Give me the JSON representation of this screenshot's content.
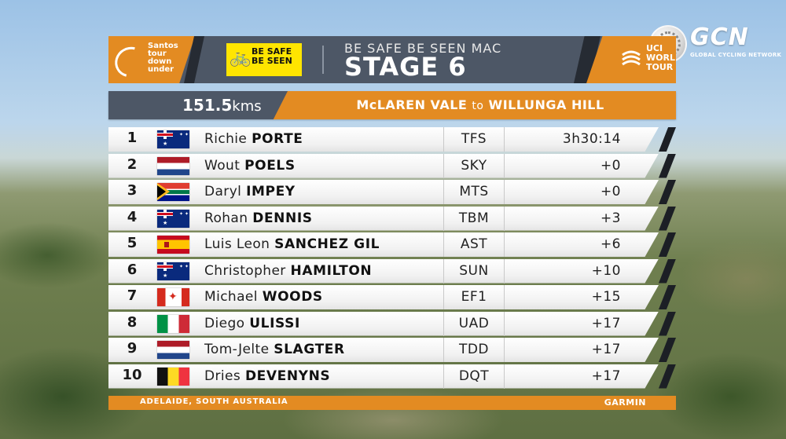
{
  "broadcaster": {
    "logo_text": "GCN",
    "logo_sub": "GLOBAL CYCLING NETWORK"
  },
  "header": {
    "event_logo_text": "Santos tour down under",
    "sponsor_logo_text": "BE SAFE BE SEEN",
    "subtitle": "BE SAFE BE SEEN MAC",
    "title": "STAGE 6",
    "uci_text": "UCI WORLD TOUR"
  },
  "route": {
    "distance_value": "151.5",
    "distance_unit": "kms",
    "start": "McLAREN VALE",
    "connector": "to",
    "finish": "WILLUNGA HILL"
  },
  "results": [
    {
      "pos": "1",
      "flag": "australia-flag",
      "first": "Richie",
      "last": "PORTE",
      "team": "TFS",
      "time": "3h30:14"
    },
    {
      "pos": "2",
      "flag": "netherlands-flag",
      "first": "Wout",
      "last": "POELS",
      "team": "SKY",
      "time": "+0"
    },
    {
      "pos": "3",
      "flag": "south-africa-flag",
      "first": "Daryl",
      "last": "IMPEY",
      "team": "MTS",
      "time": "+0"
    },
    {
      "pos": "4",
      "flag": "australia-flag",
      "first": "Rohan",
      "last": "DENNIS",
      "team": "TBM",
      "time": "+3"
    },
    {
      "pos": "5",
      "flag": "spain-flag",
      "first": "Luis Leon",
      "last": "SANCHEZ GIL",
      "team": "AST",
      "time": "+6"
    },
    {
      "pos": "6",
      "flag": "australia-flag",
      "first": "Christopher",
      "last": "HAMILTON",
      "team": "SUN",
      "time": "+10"
    },
    {
      "pos": "7",
      "flag": "canada-flag",
      "first": "Michael",
      "last": "WOODS",
      "team": "EF1",
      "time": "+15"
    },
    {
      "pos": "8",
      "flag": "italy-flag",
      "first": "Diego",
      "last": "ULISSI",
      "team": "UAD",
      "time": "+17"
    },
    {
      "pos": "9",
      "flag": "netherlands-flag",
      "first": "Tom-Jelte",
      "last": "SLAGTER",
      "team": "TDD",
      "time": "+17"
    },
    {
      "pos": "10",
      "flag": "belgium-flag",
      "first": "Dries",
      "last": "DEVENYNS",
      "team": "DQT",
      "time": "+17"
    }
  ],
  "footer": {
    "location": "ADELAIDE, SOUTH AUSTRALIA",
    "sponsor": "GARMIN"
  },
  "colors": {
    "accent_orange": "#e38b22",
    "header_slate": "#4d5766",
    "sponsor_yellow": "#ffe500"
  }
}
